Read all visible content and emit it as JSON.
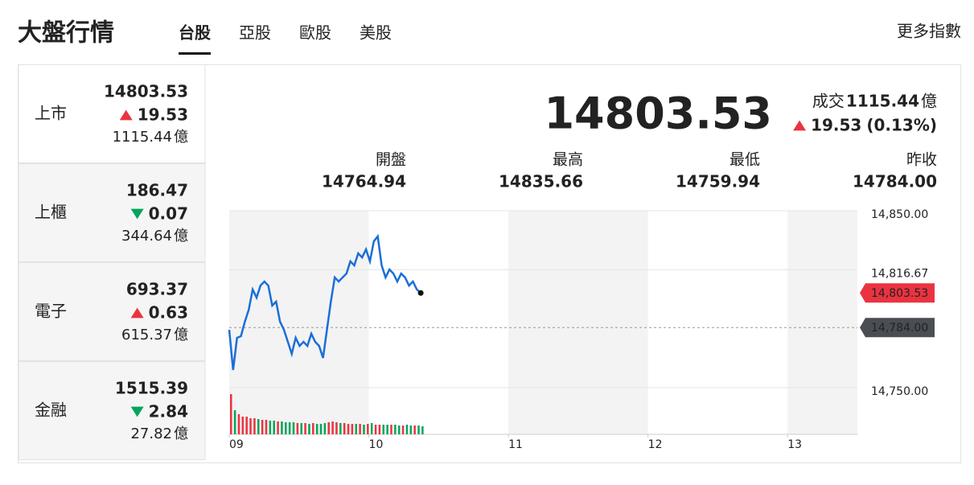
{
  "header": {
    "title": "大盤行情",
    "tabs": [
      "台股",
      "亞股",
      "歐股",
      "美股"
    ],
    "active_tab": 0,
    "more_link": "更多指數"
  },
  "theme": {
    "up": "#ea3340",
    "down": "#04a55a",
    "link": "#1a6ed8"
  },
  "indices": [
    {
      "name": "上市",
      "price": "14803.53",
      "direction": "up",
      "change": "19.53",
      "volume": "1115.44",
      "unit": "億"
    },
    {
      "name": "上櫃",
      "price": "186.47",
      "direction": "down",
      "change": "0.07",
      "volume": "344.64",
      "unit": "億"
    },
    {
      "name": "電子",
      "price": "693.37",
      "direction": "up",
      "change": "0.63",
      "volume": "615.37",
      "unit": "億"
    },
    {
      "name": "金融",
      "price": "1515.39",
      "direction": "down",
      "change": "2.84",
      "volume": "27.82",
      "unit": "億"
    }
  ],
  "summary": {
    "price": "14803.53",
    "volume_label": "成交",
    "volume": "1115.44",
    "unit": "億",
    "direction": "up",
    "change": "19.53",
    "change_percent": "(0.13%)",
    "stats": [
      {
        "label": "開盤",
        "value": "14764.94"
      },
      {
        "label": "最高",
        "value": "14835.66"
      },
      {
        "label": "最低",
        "value": "14759.94"
      },
      {
        "label": "昨收",
        "value": "14784.00"
      }
    ]
  },
  "chart_data": {
    "type": "line",
    "color": "#1a6ed8",
    "x": [
      9,
      9.028,
      9.056,
      9.084,
      9.112,
      9.14,
      9.168,
      9.196,
      9.224,
      9.252,
      9.28,
      9.308,
      9.336,
      9.364,
      9.392,
      9.42,
      9.448,
      9.476,
      9.504,
      9.532,
      9.56,
      9.588,
      9.616,
      9.644,
      9.672,
      9.7,
      9.728,
      9.756,
      9.784,
      9.812,
      9.84,
      9.868,
      9.896,
      9.924,
      9.952,
      9.98,
      10.008,
      10.036,
      10.064,
      10.092,
      10.12,
      10.148,
      10.176,
      10.204,
      10.232,
      10.26,
      10.288,
      10.316,
      10.344,
      10.372
    ],
    "values": [
      14782.7,
      14760,
      14778.2,
      14779.1,
      14787.3,
      14794.1,
      14805.5,
      14800.9,
      14807.7,
      14810,
      14807.7,
      14796.4,
      14798.6,
      14787.3,
      14782.7,
      14775.9,
      14769.1,
      14778.2,
      14773.6,
      14775.9,
      14773.6,
      14780.5,
      14775.9,
      14773.6,
      14766.8,
      14782.7,
      14798.6,
      14812.3,
      14810,
      14812.3,
      14814.5,
      14821.4,
      14819.1,
      14825.9,
      14823.6,
      14828.2,
      14821.4,
      14832.7,
      14835.5,
      14819.1,
      14812.3,
      14816.8,
      14814.5,
      14810,
      14814.5,
      14812.3,
      14807.7,
      14810,
      14805.5,
      14803.53
    ],
    "volume": [
      50,
      30,
      25,
      22,
      22,
      20,
      20,
      19,
      18,
      18,
      17,
      17,
      16,
      16,
      15,
      15,
      15,
      14,
      14,
      14,
      13,
      14,
      13,
      13,
      14,
      15,
      16,
      15,
      14,
      14,
      13,
      13,
      13,
      13,
      12,
      13,
      14,
      12,
      12,
      12,
      12,
      12,
      12,
      11,
      11,
      12,
      11,
      11,
      11,
      10
    ],
    "xlim": [
      9,
      13.5
    ],
    "ylim": [
      14750,
      14850
    ],
    "xticks": [
      {
        "value": 9,
        "label": "09"
      },
      {
        "value": 10,
        "label": "10"
      },
      {
        "value": 11,
        "label": "11"
      },
      {
        "value": 12,
        "label": "12"
      },
      {
        "value": 13,
        "label": "13"
      }
    ],
    "yticks": [
      {
        "value": 14850,
        "label": "14,850.00"
      },
      {
        "value": 14816.67,
        "label": "14,816.67"
      },
      {
        "value": 14750,
        "label": "14,750.00"
      }
    ],
    "last": {
      "value": 14803.53,
      "label": "14,803.53"
    },
    "reference": {
      "value": 14784,
      "label": "14,784.00"
    },
    "grid": true
  }
}
